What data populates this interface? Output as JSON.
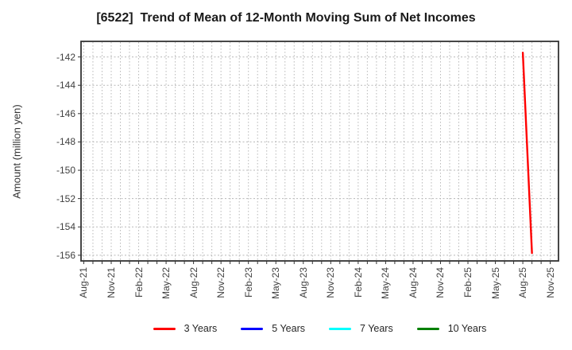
{
  "chart_data": {
    "type": "line",
    "title": "[6522]  Trend of Mean of 12-Month Moving Sum of Net Incomes",
    "xlabel": "",
    "ylabel": "Amount (million yen)",
    "x_tick_labels": [
      "Aug-21",
      "Nov-21",
      "Feb-22",
      "May-22",
      "Aug-22",
      "Nov-22",
      "Feb-23",
      "May-23",
      "Aug-23",
      "Nov-23",
      "Feb-24",
      "May-24",
      "Aug-24",
      "Nov-24",
      "Feb-25",
      "May-25",
      "Aug-25",
      "Nov-25"
    ],
    "y_ticks": [
      -142,
      -144,
      -146,
      -148,
      -150,
      -152,
      -154,
      -156
    ],
    "ylim": [
      -156.4,
      -140.9
    ],
    "xlim_months": [
      -0.3,
      51.9
    ],
    "grid": true,
    "grid_style": "dotted",
    "legend_position": "bottom",
    "series": [
      {
        "name": "3 Years",
        "color": "#ff0000",
        "points": [
          {
            "x": "Aug-25",
            "y": -141.7
          },
          {
            "x": "Sep-25",
            "y": -155.85
          }
        ]
      },
      {
        "name": "5 Years",
        "color": "#0000ff",
        "points": []
      },
      {
        "name": "7 Years",
        "color": "#00ffff",
        "points": []
      },
      {
        "name": "10 Years",
        "color": "#008000",
        "points": []
      }
    ],
    "legend": [
      {
        "label": "3 Years",
        "color": "#ff0000"
      },
      {
        "label": "5 Years",
        "color": "#0000ff"
      },
      {
        "label": "7 Years",
        "color": "#00ffff"
      },
      {
        "label": "10 Years",
        "color": "#008000"
      }
    ]
  },
  "colors": {
    "grid": "#b8b8b8",
    "axis_border": "#333333",
    "tick_text": "#404040",
    "title_text": "#1a1a1a"
  }
}
